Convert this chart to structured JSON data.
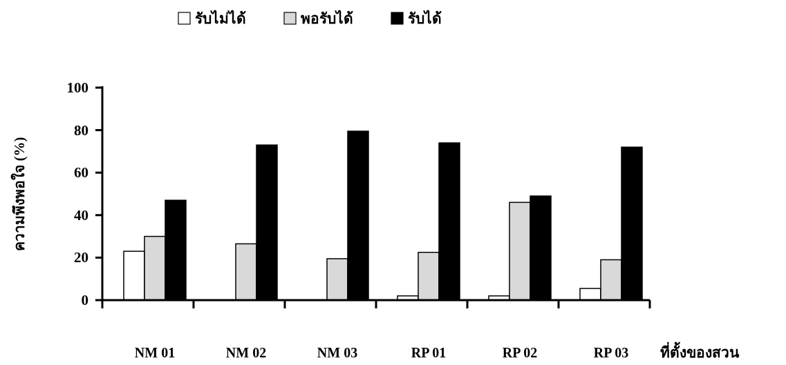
{
  "chart_data": {
    "type": "bar",
    "categories": [
      "NM 01",
      "NM 02",
      "NM 03",
      "RP 01",
      "RP 02",
      "RP 03"
    ],
    "xlabel": "ที่ตั้งของสวน",
    "ylabel": "ความพึงพอใจ (%)",
    "series": [
      {
        "name": "รับไม่ได้",
        "color": "#ffffff",
        "values": [
          23,
          null,
          null,
          2,
          2,
          5.5
        ]
      },
      {
        "name": "พอรับได้",
        "color": "#d9d9d9",
        "values": [
          30,
          26.5,
          19.5,
          22.5,
          46,
          19
        ]
      },
      {
        "name": "รับได้",
        "color": "#000000",
        "values": [
          47,
          73,
          79.5,
          74,
          49,
          72
        ]
      }
    ],
    "ylim": [
      0,
      100
    ],
    "yticks": [
      0,
      20,
      40,
      60,
      80,
      100
    ],
    "legend": "top",
    "grid": false
  }
}
